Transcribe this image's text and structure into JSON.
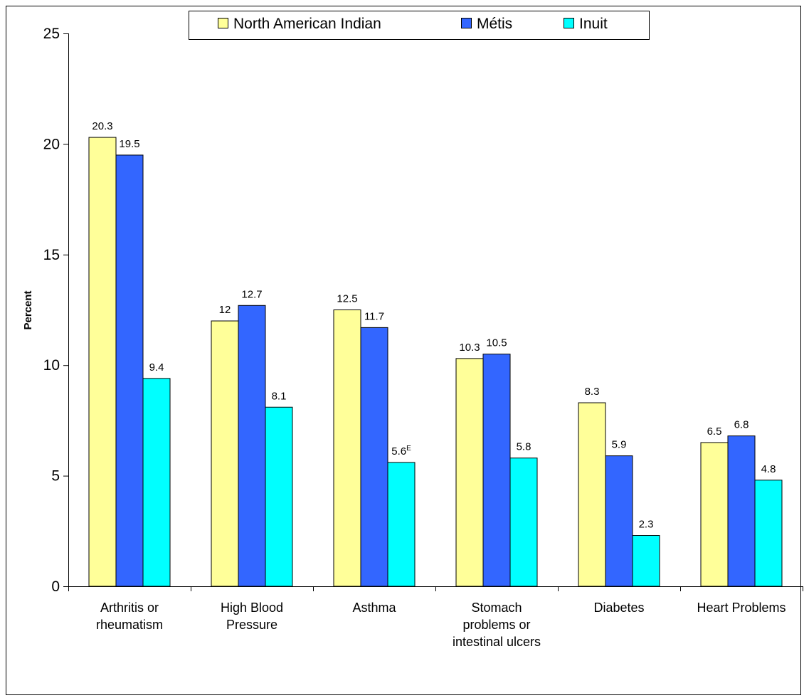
{
  "chart_data": {
    "type": "bar",
    "ylabel": "Percent",
    "ylim": [
      0,
      25
    ],
    "yticks": [
      0,
      5,
      10,
      15,
      20,
      25
    ],
    "grid": false,
    "legend_position": "top",
    "categories": [
      "Arthritis or rheumatism",
      "High Blood Pressure",
      "Asthma",
      "Stomach problems or intestinal ulcers",
      "Diabetes",
      "Heart Problems"
    ],
    "category_lines": [
      [
        "Arthritis or",
        "rheumatism"
      ],
      [
        "High Blood",
        "Pressure"
      ],
      [
        "Asthma"
      ],
      [
        "Stomach",
        "problems or",
        "intestinal ulcers"
      ],
      [
        "Diabetes"
      ],
      [
        "Heart Problems"
      ]
    ],
    "series": [
      {
        "name": "North American Indian",
        "color": "#FFFF99",
        "values": [
          20.3,
          12,
          12.5,
          10.3,
          8.3,
          6.5
        ],
        "labels": [
          "20.3",
          "12",
          "12.5",
          "10.3",
          "8.3",
          "6.5"
        ],
        "superscripts": [
          "",
          "",
          "",
          "",
          "",
          ""
        ]
      },
      {
        "name": "Métis",
        "color": "#3366FF",
        "values": [
          19.5,
          12.7,
          11.7,
          10.5,
          5.9,
          6.8
        ],
        "labels": [
          "19.5",
          "12.7",
          "11.7",
          "10.5",
          "5.9",
          "6.8"
        ],
        "superscripts": [
          "",
          "",
          "",
          "",
          "",
          ""
        ]
      },
      {
        "name": "Inuit",
        "color": "#00FFFF",
        "values": [
          9.4,
          8.1,
          5.6,
          5.8,
          2.3,
          4.8
        ],
        "labels": [
          "9.4",
          "8.1",
          "5.6",
          "5.8",
          "2.3",
          "4.8"
        ],
        "superscripts": [
          "",
          "",
          "E",
          "",
          "",
          ""
        ]
      }
    ]
  }
}
